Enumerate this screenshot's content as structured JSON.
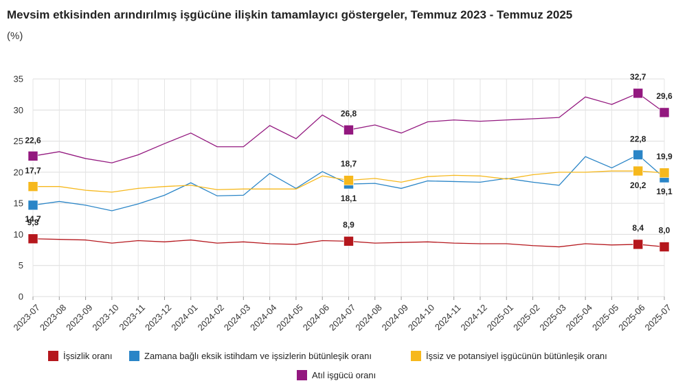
{
  "header": {
    "title": "Mevsim etkisinden arındırılmış işgücüne ilişkin tamamlayıcı göstergeler, Temmuz 2023 - Temmuz 2025",
    "subtitle": "(%)"
  },
  "chart_data": {
    "type": "line",
    "ylim": [
      0,
      35
    ],
    "yticks": [
      0,
      5,
      10,
      15,
      20,
      25,
      30,
      35
    ],
    "grid": true,
    "legend_position": "bottom",
    "categories": [
      "2023-07",
      "2023-08",
      "2023-09",
      "2023-10",
      "2023-11",
      "2023-12",
      "2024-01",
      "2024-02",
      "2024-03",
      "2024-04",
      "2024-05",
      "2024-06",
      "2024-07",
      "2024-08",
      "2024-09",
      "2024-10",
      "2024-11",
      "2024-12",
      "2025-01",
      "2025-02",
      "2025-03",
      "2025-04",
      "2025-05",
      "2025-06",
      "2025-07"
    ],
    "series": [
      {
        "name": "İşsizlik oranı",
        "color": "#b5171d",
        "values": [
          9.3,
          9.2,
          9.1,
          8.6,
          9.0,
          8.8,
          9.1,
          8.6,
          8.8,
          8.5,
          8.4,
          9.0,
          8.9,
          8.6,
          8.7,
          8.8,
          8.6,
          8.5,
          8.5,
          8.2,
          8.0,
          8.5,
          8.3,
          8.4,
          8.0
        ],
        "labels": {
          "0": "9,3",
          "12": "8,9",
          "23": "8,4",
          "24": "8,0"
        }
      },
      {
        "name": "Zamana bağlı eksik istihdam ve işsizlerin bütünleşik oranı",
        "color": "#2a85c7",
        "values": [
          14.7,
          15.3,
          14.7,
          13.8,
          14.9,
          16.3,
          18.3,
          16.2,
          16.3,
          19.8,
          17.4,
          20.1,
          18.1,
          18.2,
          17.4,
          18.6,
          18.5,
          18.4,
          19.0,
          18.4,
          17.9,
          22.5,
          20.7,
          22.8,
          19.1
        ],
        "labels": {
          "0": "14,7",
          "12": "18,1",
          "23": "22,8",
          "24": "19,1"
        }
      },
      {
        "name": "İşsiz ve potansiyel işgücünün bütünleşik oranı",
        "color": "#f6b81c",
        "values": [
          17.7,
          17.7,
          17.1,
          16.8,
          17.4,
          17.7,
          17.9,
          17.2,
          17.3,
          17.3,
          17.3,
          19.4,
          18.7,
          19.0,
          18.4,
          19.3,
          19.5,
          19.4,
          18.9,
          19.6,
          20.0,
          20.0,
          20.2,
          20.2,
          19.9
        ],
        "labels": {
          "0": "17,7",
          "12": "18,7",
          "23": "20,2",
          "24": "19,9"
        }
      },
      {
        "name": "Atıl işgücü oranı",
        "color": "#93187f",
        "values": [
          22.6,
          23.3,
          22.2,
          21.5,
          22.8,
          24.6,
          26.3,
          24.1,
          24.1,
          27.5,
          25.4,
          29.2,
          26.8,
          27.6,
          26.3,
          28.1,
          28.4,
          28.2,
          28.4,
          28.6,
          28.8,
          32.1,
          30.9,
          32.7,
          29.6
        ],
        "labels": {
          "0": "22,6",
          "12": "26,8",
          "23": "32,7",
          "24": "29,6"
        }
      }
    ]
  }
}
